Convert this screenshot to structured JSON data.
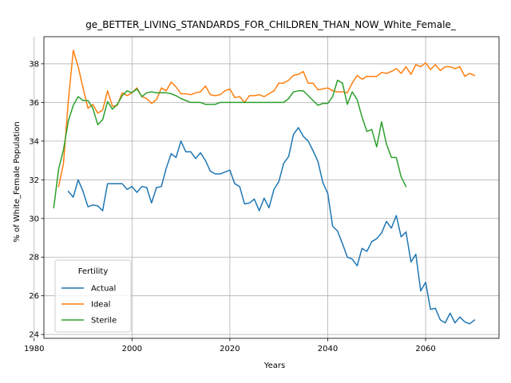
{
  "chart_data": {
    "type": "line",
    "title": "ge_BETTER_LIVING_STANDARDS_FOR_CHILDREN_THAN_NOW_White_Female_",
    "xlabel": "Years",
    "ylabel": "% of White_Female Population",
    "xlim": [
      1982,
      2075
    ],
    "ylim": [
      23.8,
      39.4
    ],
    "xticks": [
      1980,
      2000,
      2020,
      2040,
      2060
    ],
    "yticks": [
      24,
      26,
      28,
      30,
      32,
      34,
      36,
      38
    ],
    "grid": true,
    "legend": {
      "title": "Fertility",
      "placement": "lower-left"
    },
    "series": [
      {
        "name": "Actual",
        "color": "#1f77b4",
        "x": [
          1987,
          1988,
          1989,
          1990,
          1991,
          1992,
          1993,
          1994,
          1995,
          1996,
          1997,
          1998,
          1999,
          2000,
          2001,
          2002,
          2003,
          2004,
          2005,
          2006,
          2007,
          2008,
          2009,
          2010,
          2011,
          2012,
          2013,
          2014,
          2015,
          2016,
          2017,
          2018,
          2019,
          2020,
          2021,
          2022,
          2023,
          2024,
          2025,
          2026,
          2027,
          2028,
          2029,
          2030,
          2031,
          2032,
          2033,
          2034,
          2035,
          2036,
          2037,
          2038,
          2039,
          2040,
          2041,
          2042,
          2043,
          2044,
          2045,
          2046,
          2047,
          2048,
          2049,
          2050,
          2051,
          2052,
          2053,
          2054,
          2055,
          2056,
          2057,
          2058,
          2059,
          2060,
          2061,
          2062,
          2063,
          2064,
          2065,
          2066,
          2067,
          2068,
          2069,
          2070
        ],
        "values": [
          31.4,
          31.1,
          32.0,
          31.4,
          30.6,
          30.7,
          30.65,
          30.4,
          31.8,
          31.8,
          31.8,
          31.8,
          31.5,
          31.65,
          31.35,
          31.65,
          31.6,
          30.8,
          31.6,
          31.65,
          32.6,
          33.35,
          33.15,
          34.0,
          33.45,
          33.45,
          33.1,
          33.4,
          33.0,
          32.45,
          32.3,
          32.3,
          32.4,
          32.5,
          31.8,
          31.65,
          30.75,
          30.8,
          31.0,
          30.4,
          31.05,
          30.55,
          31.5,
          31.9,
          32.85,
          33.2,
          34.35,
          34.7,
          34.25,
          34.0,
          33.5,
          32.95,
          31.85,
          31.3,
          29.6,
          29.35,
          28.7,
          28.0,
          27.9,
          27.55,
          28.45,
          28.3,
          28.8,
          28.95,
          29.25,
          29.85,
          29.5,
          30.15,
          29.05,
          29.3,
          27.75,
          28.15,
          26.25,
          26.7,
          25.3,
          25.35,
          24.75,
          24.6,
          25.1,
          24.6,
          24.9,
          24.65,
          24.55,
          24.75
        ]
      },
      {
        "name": "Ideal",
        "color": "#ff7f0e",
        "x": [
          1985,
          1986,
          1987,
          1988,
          1989,
          1990,
          1991,
          1992,
          1993,
          1994,
          1995,
          1996,
          1997,
          1998,
          1999,
          2000,
          2001,
          2002,
          2003,
          2004,
          2005,
          2006,
          2007,
          2008,
          2009,
          2010,
          2011,
          2012,
          2013,
          2014,
          2015,
          2016,
          2017,
          2018,
          2019,
          2020,
          2021,
          2022,
          2023,
          2024,
          2025,
          2026,
          2027,
          2028,
          2029,
          2030,
          2031,
          2032,
          2033,
          2034,
          2035,
          2036,
          2037,
          2038,
          2039,
          2040,
          2041,
          2042,
          2043,
          2044,
          2045,
          2046,
          2047,
          2048,
          2049,
          2050,
          2051,
          2052,
          2053,
          2054,
          2055,
          2056,
          2057,
          2058,
          2059,
          2060,
          2061,
          2062,
          2063,
          2064,
          2065,
          2066,
          2067,
          2068,
          2069,
          2070
        ],
        "values": [
          31.65,
          32.85,
          36.1,
          38.7,
          37.85,
          36.75,
          35.7,
          35.9,
          35.45,
          35.6,
          36.6,
          35.8,
          35.85,
          36.5,
          36.35,
          36.5,
          36.75,
          36.3,
          36.2,
          35.95,
          36.15,
          36.75,
          36.6,
          37.05,
          36.8,
          36.45,
          36.45,
          36.4,
          36.5,
          36.55,
          36.85,
          36.4,
          36.35,
          36.4,
          36.6,
          36.7,
          36.25,
          36.3,
          36.0,
          36.35,
          36.35,
          36.4,
          36.3,
          36.45,
          36.6,
          37.0,
          37.0,
          37.15,
          37.4,
          37.45,
          37.6,
          37.0,
          37.0,
          36.65,
          36.7,
          36.75,
          36.6,
          36.55,
          36.55,
          36.5,
          37.0,
          37.4,
          37.2,
          37.35,
          37.35,
          37.35,
          37.55,
          37.5,
          37.6,
          37.75,
          37.5,
          37.85,
          37.45,
          37.95,
          37.85,
          38.05,
          37.7,
          37.95,
          37.65,
          37.85,
          37.85,
          37.75,
          37.85,
          37.35,
          37.5,
          37.4
        ]
      },
      {
        "name": "Sterile",
        "color": "#2ca02c",
        "x": [
          1984,
          1985,
          1986,
          1987,
          1988,
          1989,
          1990,
          1991,
          1992,
          1993,
          1994,
          1995,
          1996,
          1997,
          1998,
          1999,
          2000,
          2001,
          2002,
          2003,
          2004,
          2005,
          2006,
          2007,
          2008,
          2009,
          2010,
          2011,
          2012,
          2013,
          2014,
          2015,
          2016,
          2017,
          2018,
          2019,
          2020,
          2021,
          2022,
          2023,
          2024,
          2025,
          2026,
          2027,
          2028,
          2029,
          2030,
          2031,
          2032,
          2033,
          2034,
          2035,
          2036,
          2037,
          2038,
          2039,
          2040,
          2041,
          2042,
          2043,
          2044,
          2045,
          2046,
          2047,
          2048,
          2049,
          2050,
          2051,
          2052,
          2053,
          2054,
          2055,
          2056
        ],
        "values": [
          30.55,
          32.55,
          33.55,
          35.05,
          35.85,
          36.3,
          36.1,
          36.1,
          35.7,
          34.85,
          35.1,
          36.05,
          35.65,
          35.9,
          36.35,
          36.6,
          36.5,
          36.7,
          36.3,
          36.5,
          36.55,
          36.5,
          36.5,
          36.5,
          36.45,
          36.35,
          36.2,
          36.1,
          36.0,
          36.0,
          36.0,
          35.9,
          35.9,
          35.9,
          36.0,
          36.0,
          36.0,
          36.0,
          36.0,
          36.0,
          36.0,
          36.0,
          36.0,
          36.0,
          36.0,
          36.0,
          36.0,
          36.0,
          36.2,
          36.55,
          36.6,
          36.6,
          36.35,
          36.1,
          35.85,
          35.95,
          35.95,
          36.3,
          37.15,
          37.0,
          35.9,
          36.55,
          36.15,
          35.25,
          34.5,
          34.6,
          33.7,
          35.0,
          33.85,
          33.15,
          33.15,
          32.15,
          31.65
        ]
      }
    ]
  }
}
